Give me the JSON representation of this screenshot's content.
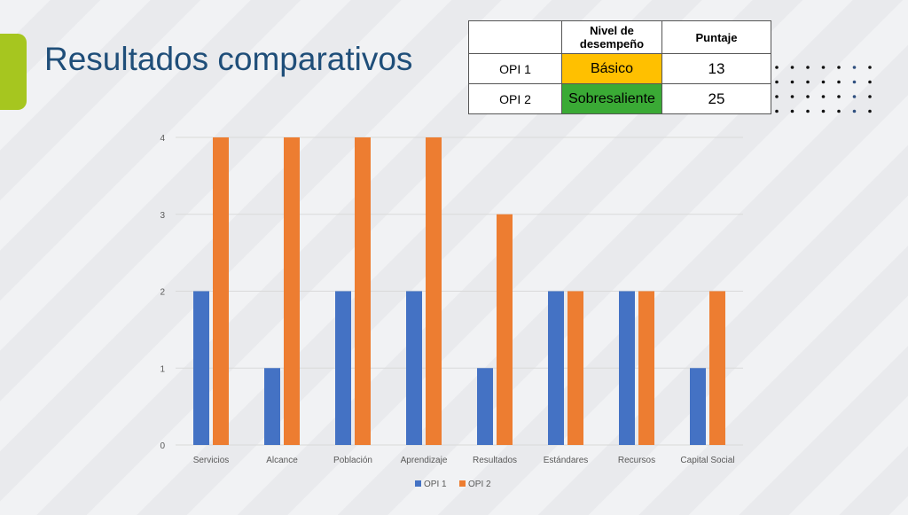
{
  "slide": {
    "title": "Resultados comparativos"
  },
  "table": {
    "headers": [
      "",
      "Nivel de desempeño",
      "Puntaje"
    ],
    "rows": [
      {
        "label": "OPI 1",
        "level": "Básico",
        "score": "13",
        "level_color": "#ffc000"
      },
      {
        "label": "OPI 2",
        "level": "Sobresaliente",
        "score": "25",
        "level_color": "#3aaa35"
      }
    ]
  },
  "chart_data": {
    "type": "bar",
    "categories": [
      "Servicios",
      "Alcance",
      "Población",
      "Aprendizaje",
      "Resultados",
      "Estándares",
      "Recursos",
      "Capital Social"
    ],
    "series": [
      {
        "name": "OPI 1",
        "values": [
          2,
          1,
          2,
          2,
          1,
          2,
          2,
          1
        ],
        "color": "#4472c4"
      },
      {
        "name": "OPI 2",
        "values": [
          4,
          4,
          4,
          4,
          3,
          2,
          2,
          2
        ],
        "color": "#ed7d31"
      }
    ],
    "yticks": [
      "0",
      "1",
      "2",
      "3",
      "4"
    ],
    "ylim": [
      0,
      4
    ],
    "grid": true,
    "legend": "bottom"
  }
}
